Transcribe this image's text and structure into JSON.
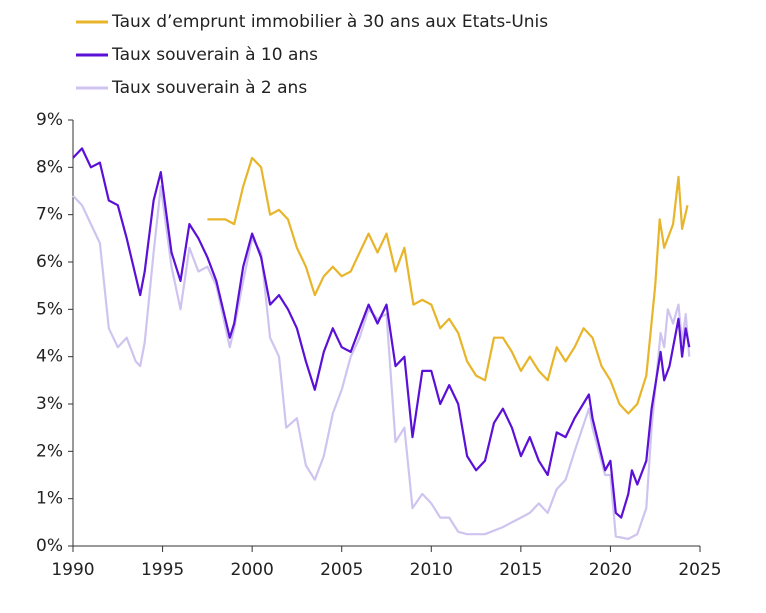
{
  "chart_data": {
    "type": "line",
    "xlim": [
      1990,
      2025
    ],
    "xticks": [
      1990,
      1995,
      2000,
      2005,
      2010,
      2015,
      2020,
      2025
    ],
    "ylim": [
      0,
      9
    ],
    "yticks": [
      {
        "value": 0,
        "label": "0%"
      },
      {
        "value": 1,
        "label": "1%"
      },
      {
        "value": 2,
        "label": "2%"
      },
      {
        "value": 3,
        "label": "3%"
      },
      {
        "value": 4,
        "label": "4%"
      },
      {
        "value": 5,
        "label": "5%"
      },
      {
        "value": 6,
        "label": "6%"
      },
      {
        "value": 7,
        "label": "7%"
      },
      {
        "value": 8,
        "label": "8%"
      },
      {
        "value": 9,
        "label": "9%"
      }
    ],
    "grid": false,
    "legend": "top-left",
    "series": [
      {
        "name": "Taux d’emprunt immobilier à 30 ans aux Etats-Unis",
        "color": "#E8B52A",
        "x": [
          1997.5,
          1998,
          1998.5,
          1999,
          1999.5,
          2000,
          2000.5,
          2001,
          2001.5,
          2002,
          2002.5,
          2003,
          2003.5,
          2004,
          2004.5,
          2005,
          2005.5,
          2006,
          2006.5,
          2007,
          2007.5,
          2008,
          2008.5,
          2009,
          2009.5,
          2010,
          2010.5,
          2011,
          2011.5,
          2012,
          2012.5,
          2013,
          2013.5,
          2014,
          2014.5,
          2015,
          2015.5,
          2016,
          2016.5,
          2017,
          2017.5,
          2018,
          2018.5,
          2019,
          2019.5,
          2020,
          2020.5,
          2021,
          2021.5,
          2022,
          2022.5,
          2022.75,
          2023,
          2023.5,
          2023.8,
          2024,
          2024.3
        ],
        "values": [
          6.9,
          6.9,
          6.9,
          6.8,
          7.6,
          8.2,
          8.0,
          7.0,
          7.1,
          6.9,
          6.3,
          5.9,
          5.3,
          5.7,
          5.9,
          5.7,
          5.8,
          6.2,
          6.6,
          6.2,
          6.6,
          5.8,
          6.3,
          5.1,
          5.2,
          5.1,
          4.6,
          4.8,
          4.5,
          3.9,
          3.6,
          3.5,
          4.4,
          4.4,
          4.1,
          3.7,
          4.0,
          3.7,
          3.5,
          4.2,
          3.9,
          4.2,
          4.6,
          4.4,
          3.8,
          3.5,
          3.0,
          2.8,
          3.0,
          3.6,
          5.5,
          6.9,
          6.3,
          6.8,
          7.8,
          6.7,
          7.2
        ]
      },
      {
        "name": "Taux souverain à 10 ans",
        "color": "#5B10D8",
        "x": [
          1990,
          1990.5,
          1991,
          1991.5,
          1992,
          1992.5,
          1993,
          1993.75,
          1994,
          1994.5,
          1994.9,
          1995.5,
          1996,
          1996.5,
          1997,
          1997.5,
          1998,
          1998.75,
          1999,
          1999.5,
          2000,
          2000.5,
          2001,
          2001.5,
          2002,
          2002.5,
          2003,
          2003.5,
          2004,
          2004.5,
          2005,
          2005.5,
          2006,
          2006.5,
          2007,
          2007.5,
          2008,
          2008.5,
          2008.95,
          2009.5,
          2010,
          2010.5,
          2011,
          2011.5,
          2012,
          2012.5,
          2013,
          2013.5,
          2014,
          2014.5,
          2015,
          2015.5,
          2016,
          2016.5,
          2017,
          2017.5,
          2018,
          2018.8,
          2019,
          2019.7,
          2020,
          2020.3,
          2020.6,
          2021,
          2021.2,
          2021.5,
          2022,
          2022.3,
          2022.8,
          2023,
          2023.3,
          2023.8,
          2024,
          2024.2,
          2024.4
        ],
        "values": [
          8.2,
          8.4,
          8.0,
          8.1,
          7.3,
          7.2,
          6.5,
          5.3,
          5.8,
          7.3,
          7.9,
          6.2,
          5.6,
          6.8,
          6.5,
          6.1,
          5.6,
          4.4,
          4.7,
          5.9,
          6.6,
          6.1,
          5.1,
          5.3,
          5.0,
          4.6,
          3.9,
          3.3,
          4.1,
          4.6,
          4.2,
          4.1,
          4.6,
          5.1,
          4.7,
          5.1,
          3.8,
          4.0,
          2.3,
          3.7,
          3.7,
          3.0,
          3.4,
          3.0,
          1.9,
          1.6,
          1.8,
          2.6,
          2.9,
          2.5,
          1.9,
          2.3,
          1.8,
          1.5,
          2.4,
          2.3,
          2.7,
          3.2,
          2.7,
          1.6,
          1.8,
          0.7,
          0.6,
          1.1,
          1.6,
          1.3,
          1.8,
          2.9,
          4.1,
          3.5,
          3.8,
          4.8,
          4.0,
          4.6,
          4.2
        ]
      },
      {
        "name": "Taux souverain à 2 ans",
        "color": "#CFC4F0",
        "x": [
          1990,
          1990.5,
          1991,
          1991.5,
          1992,
          1992.5,
          1993,
          1993.5,
          1993.75,
          1994,
          1994.5,
          1994.9,
          1995.5,
          1996,
          1996.5,
          1997,
          1997.5,
          1998,
          1998.75,
          1999,
          1999.5,
          2000,
          2000.5,
          2001,
          2001.5,
          2001.9,
          2002.5,
          2003,
          2003.5,
          2004,
          2004.5,
          2005,
          2005.5,
          2006,
          2006.5,
          2007,
          2007.5,
          2008,
          2008.5,
          2008.95,
          2009.5,
          2010,
          2010.5,
          2011,
          2011.5,
          2012,
          2013,
          2014,
          2015,
          2015.5,
          2016,
          2016.5,
          2017,
          2017.5,
          2018,
          2018.8,
          2019,
          2019.7,
          2020,
          2020.3,
          2021,
          2021.5,
          2022,
          2022.3,
          2022.8,
          2023,
          2023.2,
          2023.5,
          2023.8,
          2024,
          2024.2,
          2024.4
        ],
        "values": [
          7.4,
          7.2,
          6.8,
          6.4,
          4.6,
          4.2,
          4.4,
          3.9,
          3.8,
          4.3,
          6.2,
          7.6,
          5.9,
          5.0,
          6.3,
          5.8,
          5.9,
          5.5,
          4.2,
          4.6,
          5.6,
          6.5,
          6.2,
          4.4,
          4.0,
          2.5,
          2.7,
          1.7,
          1.4,
          1.9,
          2.8,
          3.3,
          4.0,
          4.4,
          5.0,
          4.8,
          4.9,
          2.2,
          2.5,
          0.8,
          1.1,
          0.9,
          0.6,
          0.6,
          0.3,
          0.25,
          0.25,
          0.4,
          0.6,
          0.7,
          0.9,
          0.7,
          1.2,
          1.4,
          2.0,
          2.9,
          2.5,
          1.5,
          1.5,
          0.2,
          0.15,
          0.25,
          0.8,
          2.5,
          4.5,
          4.2,
          5.0,
          4.7,
          5.1,
          4.3,
          4.9,
          4.0
        ]
      }
    ]
  }
}
